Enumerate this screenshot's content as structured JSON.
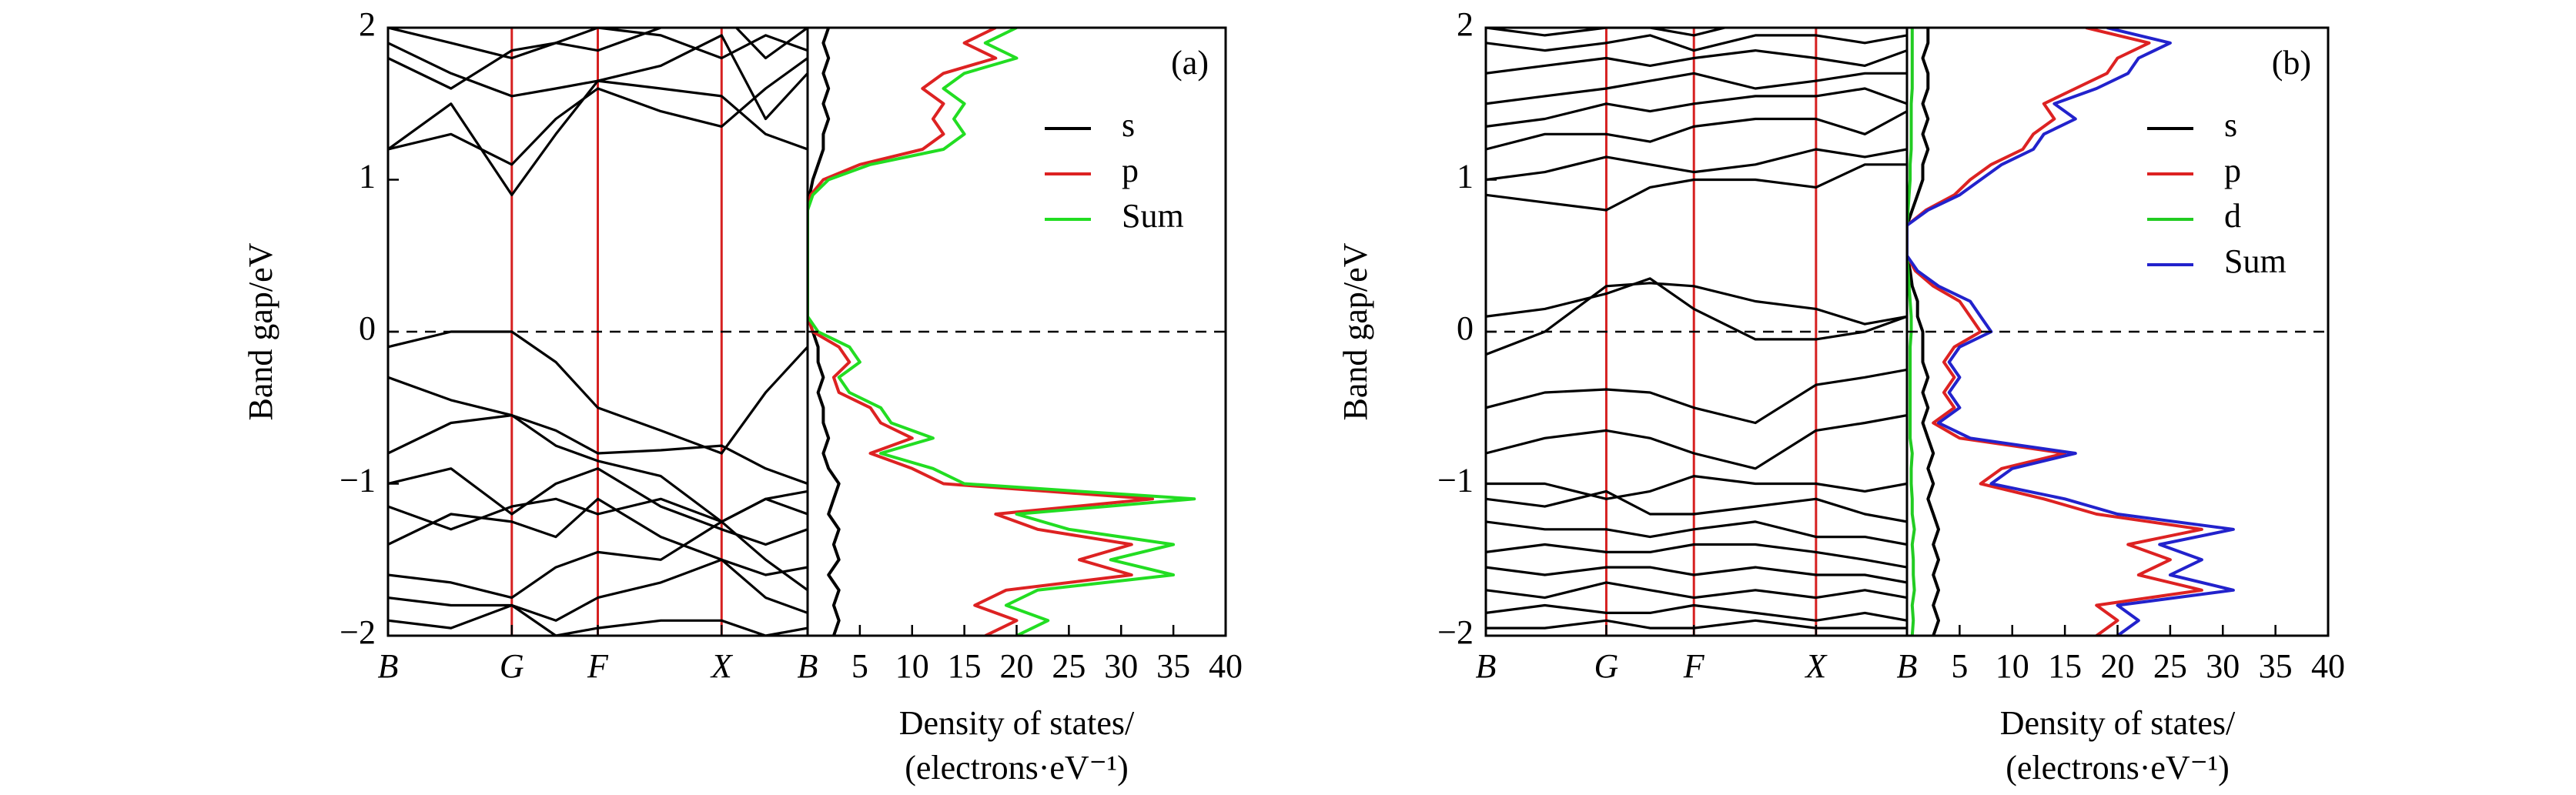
{
  "chart_data": [
    {
      "type": "line",
      "ylabel": "Band gap/eV",
      "x": [
        0,
        0.15,
        0.295,
        0.4,
        0.5,
        0.65,
        0.795,
        0.9,
        1
      ],
      "xlim": [
        0,
        1
      ],
      "xticks": [
        {
          "value": 0,
          "label": "B"
        },
        {
          "value": 0.295,
          "label": "G"
        },
        {
          "value": 0.5,
          "label": "F"
        },
        {
          "value": 0.795,
          "label": "X"
        },
        {
          "value": 1,
          "label": "B"
        }
      ],
      "ylim": [
        -2,
        2
      ],
      "yticks": [
        {
          "value": -2,
          "label": "−2"
        },
        {
          "value": -1,
          "label": "−1"
        },
        0,
        1,
        2
      ],
      "hline": 0,
      "vlines_color": "#d62020",
      "series": [
        {
          "color": "#000000",
          "values": [
            1.2,
            1.5,
            0.9,
            1.3,
            1.65,
            1.6,
            1.55,
            1.3,
            1.2
          ]
        },
        {
          "color": "#000000",
          "values": [
            1.2,
            1.3,
            1.1,
            1.4,
            1.6,
            1.45,
            1.35,
            1.6,
            1.8
          ]
        },
        {
          "color": "#000000",
          "values": [
            1.9,
            1.7,
            1.55,
            1.6,
            1.65,
            1.75,
            1.95,
            1.4,
            1.7
          ]
        },
        {
          "color": "#000000",
          "values": [
            2.0,
            1.9,
            1.8,
            1.9,
            1.85,
            2.0,
            2.1,
            1.8,
            2.0
          ]
        },
        {
          "color": "#000000",
          "values": [
            1.8,
            1.6,
            1.85,
            1.9,
            2.0,
            1.95,
            1.8,
            1.95,
            1.85
          ]
        },
        {
          "color": "#000000",
          "values": [
            -0.1,
            0,
            0,
            -0.2,
            -0.5,
            -0.65,
            -0.8,
            -0.4,
            -0.1
          ]
        },
        {
          "color": "#000000",
          "values": [
            -0.3,
            -0.45,
            -0.55,
            -0.65,
            -0.8,
            -0.78,
            -0.75,
            -0.9,
            -1.0
          ]
        },
        {
          "color": "#000000",
          "values": [
            -0.8,
            -0.6,
            -0.55,
            -0.75,
            -0.85,
            -0.95,
            -1.25,
            -1.1,
            -1.05
          ]
        },
        {
          "color": "#000000",
          "values": [
            -1.0,
            -0.9,
            -1.2,
            -1.0,
            -0.9,
            -1.15,
            -1.3,
            -1.4,
            -1.3
          ]
        },
        {
          "color": "#000000",
          "values": [
            -1.15,
            -1.3,
            -1.15,
            -1.1,
            -1.2,
            -1.1,
            -1.25,
            -1.1,
            -1.2
          ]
        },
        {
          "color": "#000000",
          "values": [
            -1.4,
            -1.2,
            -1.25,
            -1.35,
            -1.1,
            -1.35,
            -1.5,
            -1.6,
            -1.55
          ]
        },
        {
          "color": "#000000",
          "values": [
            -1.6,
            -1.65,
            -1.75,
            -1.55,
            -1.45,
            -1.5,
            -1.25,
            -1.5,
            -1.7
          ]
        },
        {
          "color": "#000000",
          "values": [
            -1.75,
            -1.8,
            -1.8,
            -1.9,
            -1.75,
            -1.65,
            -1.5,
            -1.75,
            -1.85
          ]
        },
        {
          "color": "#000000",
          "values": [
            -1.9,
            -1.95,
            -1.8,
            -2.0,
            -1.95,
            -1.9,
            -1.9,
            -2.0,
            -1.95
          ]
        }
      ]
    },
    {
      "type": "line",
      "orientation": "horizontal",
      "annotation": "(a)",
      "legend": "upper right",
      "xlabel": [
        "Density of states/",
        "(electrons·eV⁻¹)"
      ],
      "xlim": [
        0,
        40
      ],
      "xticks": [
        5,
        10,
        15,
        20,
        25,
        30,
        35,
        40
      ],
      "ylim": [
        -2,
        2
      ],
      "hline": 0,
      "y": [
        -2.0,
        -1.9,
        -1.8,
        -1.7,
        -1.6,
        -1.5,
        -1.4,
        -1.3,
        -1.2,
        -1.1,
        -1.0,
        -0.9,
        -0.8,
        -0.7,
        -0.6,
        -0.5,
        -0.4,
        -0.3,
        -0.2,
        -0.1,
        0.0,
        0.1,
        0.2,
        0.3,
        0.4,
        0.5,
        0.6,
        0.7,
        0.8,
        0.9,
        1.0,
        1.1,
        1.2,
        1.3,
        1.4,
        1.5,
        1.6,
        1.7,
        1.8,
        1.9,
        2.0
      ],
      "series": [
        {
          "name": "s",
          "color": "#000000",
          "values": [
            2.5,
            3,
            2.5,
            3,
            2,
            3,
            2.5,
            3,
            2,
            2.5,
            3,
            2,
            1.5,
            2,
            1.5,
            1.5,
            1,
            1.5,
            1,
            1,
            0.5,
            0,
            0,
            0,
            0,
            0,
            0,
            0,
            0,
            0.2,
            0.5,
            1,
            1.5,
            1.5,
            2,
            1.5,
            2,
            1.5,
            2,
            1.5,
            2
          ]
        },
        {
          "name": "p",
          "color": "#dd2222",
          "values": [
            17,
            20,
            16,
            19,
            31,
            26,
            31,
            22,
            18,
            33,
            13,
            10,
            6,
            10,
            7,
            6,
            3,
            2.5,
            4,
            3,
            0.5,
            0,
            0,
            0,
            0,
            0,
            0,
            0,
            0,
            0.3,
            1.5,
            5,
            11,
            13,
            12,
            13,
            11,
            13,
            18,
            15,
            18
          ]
        },
        {
          "name": "Sum",
          "color": "#22dd22",
          "values": [
            20,
            23,
            19,
            22,
            35,
            29,
            35,
            25,
            20,
            37,
            15,
            12,
            7,
            12,
            8,
            7,
            4,
            3,
            5,
            4,
            1,
            0,
            0,
            0,
            0,
            0,
            0,
            0,
            0,
            0.5,
            2,
            6,
            13,
            15,
            14,
            15,
            13,
            15,
            20,
            17,
            20
          ]
        }
      ]
    },
    {
      "type": "line",
      "ylabel": "Band gap/eV",
      "x": [
        0,
        0.14,
        0.286,
        0.39,
        0.494,
        0.64,
        0.784,
        0.9,
        1
      ],
      "xlim": [
        0,
        1
      ],
      "xticks": [
        {
          "value": 0,
          "label": "B"
        },
        {
          "value": 0.286,
          "label": "G"
        },
        {
          "value": 0.494,
          "label": "F"
        },
        {
          "value": 0.784,
          "label": "X"
        },
        {
          "value": 1,
          "label": "B"
        }
      ],
      "ylim": [
        -2,
        2
      ],
      "yticks": [
        {
          "value": -2,
          "label": "−2"
        },
        {
          "value": -1,
          "label": "−1"
        },
        0,
        1,
        2
      ],
      "hline": 0,
      "vlines_color": "#d62020",
      "series": [
        {
          "color": "#000000",
          "values": [
            0.9,
            0.85,
            0.8,
            0.95,
            1.0,
            1.0,
            0.95,
            1.1,
            1.1
          ]
        },
        {
          "color": "#000000",
          "values": [
            1.0,
            1.05,
            1.15,
            1.1,
            1.05,
            1.1,
            1.2,
            1.15,
            1.2
          ]
        },
        {
          "color": "#000000",
          "values": [
            1.2,
            1.3,
            1.3,
            1.25,
            1.35,
            1.4,
            1.4,
            1.3,
            1.45
          ]
        },
        {
          "color": "#000000",
          "values": [
            1.35,
            1.4,
            1.5,
            1.45,
            1.5,
            1.55,
            1.55,
            1.6,
            1.5
          ]
        },
        {
          "color": "#000000",
          "values": [
            1.5,
            1.55,
            1.6,
            1.65,
            1.7,
            1.6,
            1.65,
            1.7,
            1.7
          ]
        },
        {
          "color": "#000000",
          "values": [
            1.7,
            1.75,
            1.8,
            1.75,
            1.8,
            1.85,
            1.8,
            1.75,
            1.85
          ]
        },
        {
          "color": "#000000",
          "values": [
            1.9,
            1.85,
            1.9,
            1.95,
            1.85,
            1.95,
            1.95,
            1.9,
            1.95
          ]
        },
        {
          "color": "#000000",
          "values": [
            2.0,
            1.95,
            2.0,
            2.0,
            1.95,
            2.05,
            2.0,
            2.0,
            2.0
          ]
        },
        {
          "color": "#000000",
          "values": [
            0.1,
            0.15,
            0.25,
            0.35,
            0.15,
            -0.05,
            -0.05,
            0.0,
            0.1
          ]
        },
        {
          "color": "#000000",
          "values": [
            -0.15,
            0.0,
            0.3,
            0.32,
            0.3,
            0.2,
            0.15,
            0.05,
            0.1
          ]
        },
        {
          "color": "#000000",
          "values": [
            -0.5,
            -0.4,
            -0.38,
            -0.4,
            -0.5,
            -0.6,
            -0.35,
            -0.3,
            -0.25
          ]
        },
        {
          "color": "#000000",
          "values": [
            -0.8,
            -0.7,
            -0.65,
            -0.7,
            -0.8,
            -0.9,
            -0.65,
            -0.6,
            -0.55
          ]
        },
        {
          "color": "#000000",
          "values": [
            -1.0,
            -1.0,
            -1.1,
            -1.05,
            -0.95,
            -1.0,
            -1.0,
            -1.05,
            -1.0
          ]
        },
        {
          "color": "#000000",
          "values": [
            -1.1,
            -1.15,
            -1.05,
            -1.2,
            -1.2,
            -1.15,
            -1.1,
            -1.2,
            -1.25
          ]
        },
        {
          "color": "#000000",
          "values": [
            -1.25,
            -1.3,
            -1.3,
            -1.35,
            -1.3,
            -1.25,
            -1.35,
            -1.35,
            -1.4
          ]
        },
        {
          "color": "#000000",
          "values": [
            -1.45,
            -1.4,
            -1.45,
            -1.45,
            -1.4,
            -1.4,
            -1.45,
            -1.5,
            -1.55
          ]
        },
        {
          "color": "#000000",
          "values": [
            -1.55,
            -1.6,
            -1.55,
            -1.55,
            -1.6,
            -1.55,
            -1.6,
            -1.6,
            -1.65
          ]
        },
        {
          "color": "#000000",
          "values": [
            -1.7,
            -1.75,
            -1.65,
            -1.7,
            -1.75,
            -1.7,
            -1.75,
            -1.7,
            -1.75
          ]
        },
        {
          "color": "#000000",
          "values": [
            -1.85,
            -1.8,
            -1.85,
            -1.85,
            -1.8,
            -1.85,
            -1.9,
            -1.85,
            -1.9
          ]
        },
        {
          "color": "#000000",
          "values": [
            -1.95,
            -1.95,
            -1.9,
            -1.95,
            -1.95,
            -1.9,
            -1.95,
            -1.95,
            -1.95
          ]
        }
      ]
    },
    {
      "type": "line",
      "orientation": "horizontal",
      "annotation": "(b)",
      "legend": "upper right",
      "xlabel": [
        "Density of states/",
        "(electrons·eV⁻¹)"
      ],
      "xlim": [
        0,
        40
      ],
      "xticks": [
        5,
        10,
        15,
        20,
        25,
        30,
        35,
        40
      ],
      "ylim": [
        -2,
        2
      ],
      "hline": 0,
      "y": [
        -2.0,
        -1.9,
        -1.8,
        -1.7,
        -1.6,
        -1.5,
        -1.4,
        -1.3,
        -1.2,
        -1.1,
        -1.0,
        -0.9,
        -0.8,
        -0.7,
        -0.6,
        -0.5,
        -0.4,
        -0.3,
        -0.2,
        -0.1,
        0.0,
        0.1,
        0.2,
        0.3,
        0.4,
        0.5,
        0.6,
        0.7,
        0.8,
        0.9,
        1.0,
        1.1,
        1.2,
        1.3,
        1.4,
        1.5,
        1.6,
        1.7,
        1.8,
        1.9,
        2.0
      ],
      "series": [
        {
          "name": "s",
          "color": "#000000",
          "values": [
            2.5,
            3,
            2.5,
            3,
            2.5,
            3,
            2.5,
            3,
            2.5,
            2,
            2.5,
            2,
            2.5,
            2,
            1.5,
            2,
            1.5,
            2,
            1.5,
            1.5,
            1.5,
            1,
            1,
            0.5,
            0.3,
            0,
            0,
            0,
            0.5,
            1,
            1.5,
            1.5,
            2,
            1.5,
            2,
            1.5,
            2,
            2,
            1.5,
            2,
            2
          ]
        },
        {
          "name": "p",
          "color": "#dd2222",
          "values": [
            18,
            20,
            18,
            28,
            22,
            25,
            21,
            28,
            18,
            13,
            7,
            9,
            15,
            5,
            2.5,
            4.5,
            3.5,
            4.5,
            3.5,
            4.5,
            7,
            6,
            5,
            2.5,
            0.8,
            0,
            0,
            0,
            1.8,
            4.5,
            6,
            8,
            11,
            12,
            14,
            13,
            16,
            19,
            20,
            23,
            17
          ]
        },
        {
          "name": "d",
          "color": "#22cc22",
          "values": [
            0.5,
            0.6,
            0.5,
            0.7,
            0.6,
            0.6,
            0.5,
            0.7,
            0.5,
            0.5,
            0.4,
            0.4,
            0.5,
            0.3,
            0.3,
            0.3,
            0.3,
            0.3,
            0.3,
            0.3,
            0.4,
            0.4,
            0.3,
            0.2,
            0.1,
            0,
            0,
            0,
            0.1,
            0.2,
            0.3,
            0.3,
            0.4,
            0.4,
            0.4,
            0.4,
            0.5,
            0.5,
            0.5,
            0.5,
            0.5
          ]
        },
        {
          "name": "Sum",
          "color": "#2222cc",
          "values": [
            20,
            22,
            20,
            31,
            25,
            28,
            24,
            31,
            20,
            15,
            8,
            10,
            16,
            6,
            3,
            5,
            4,
            5,
            4,
            5,
            8,
            7,
            6,
            3,
            1,
            0,
            0,
            0,
            2,
            5,
            7,
            9,
            12,
            13,
            16,
            14,
            18,
            21,
            22,
            25,
            19
          ]
        }
      ]
    }
  ]
}
